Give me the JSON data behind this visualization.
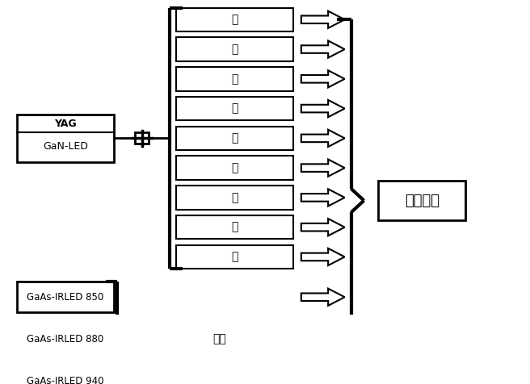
{
  "background_color": "#ffffff",
  "spec_labels": [
    "红",
    "橙",
    "黄",
    "绿",
    "蓝",
    "青",
    "紫",
    "黄",
    "绿"
  ],
  "ir_labels": [
    "GaAs-IRLED 850",
    "GaAs-IRLED 880",
    "GaAs-IRLED 940"
  ],
  "yag_top": "YAG",
  "yag_bot": "GaN-LED",
  "ir_single_label": "红外",
  "output_label": "合成白光",
  "line_color": "#000000",
  "font_size": 9
}
